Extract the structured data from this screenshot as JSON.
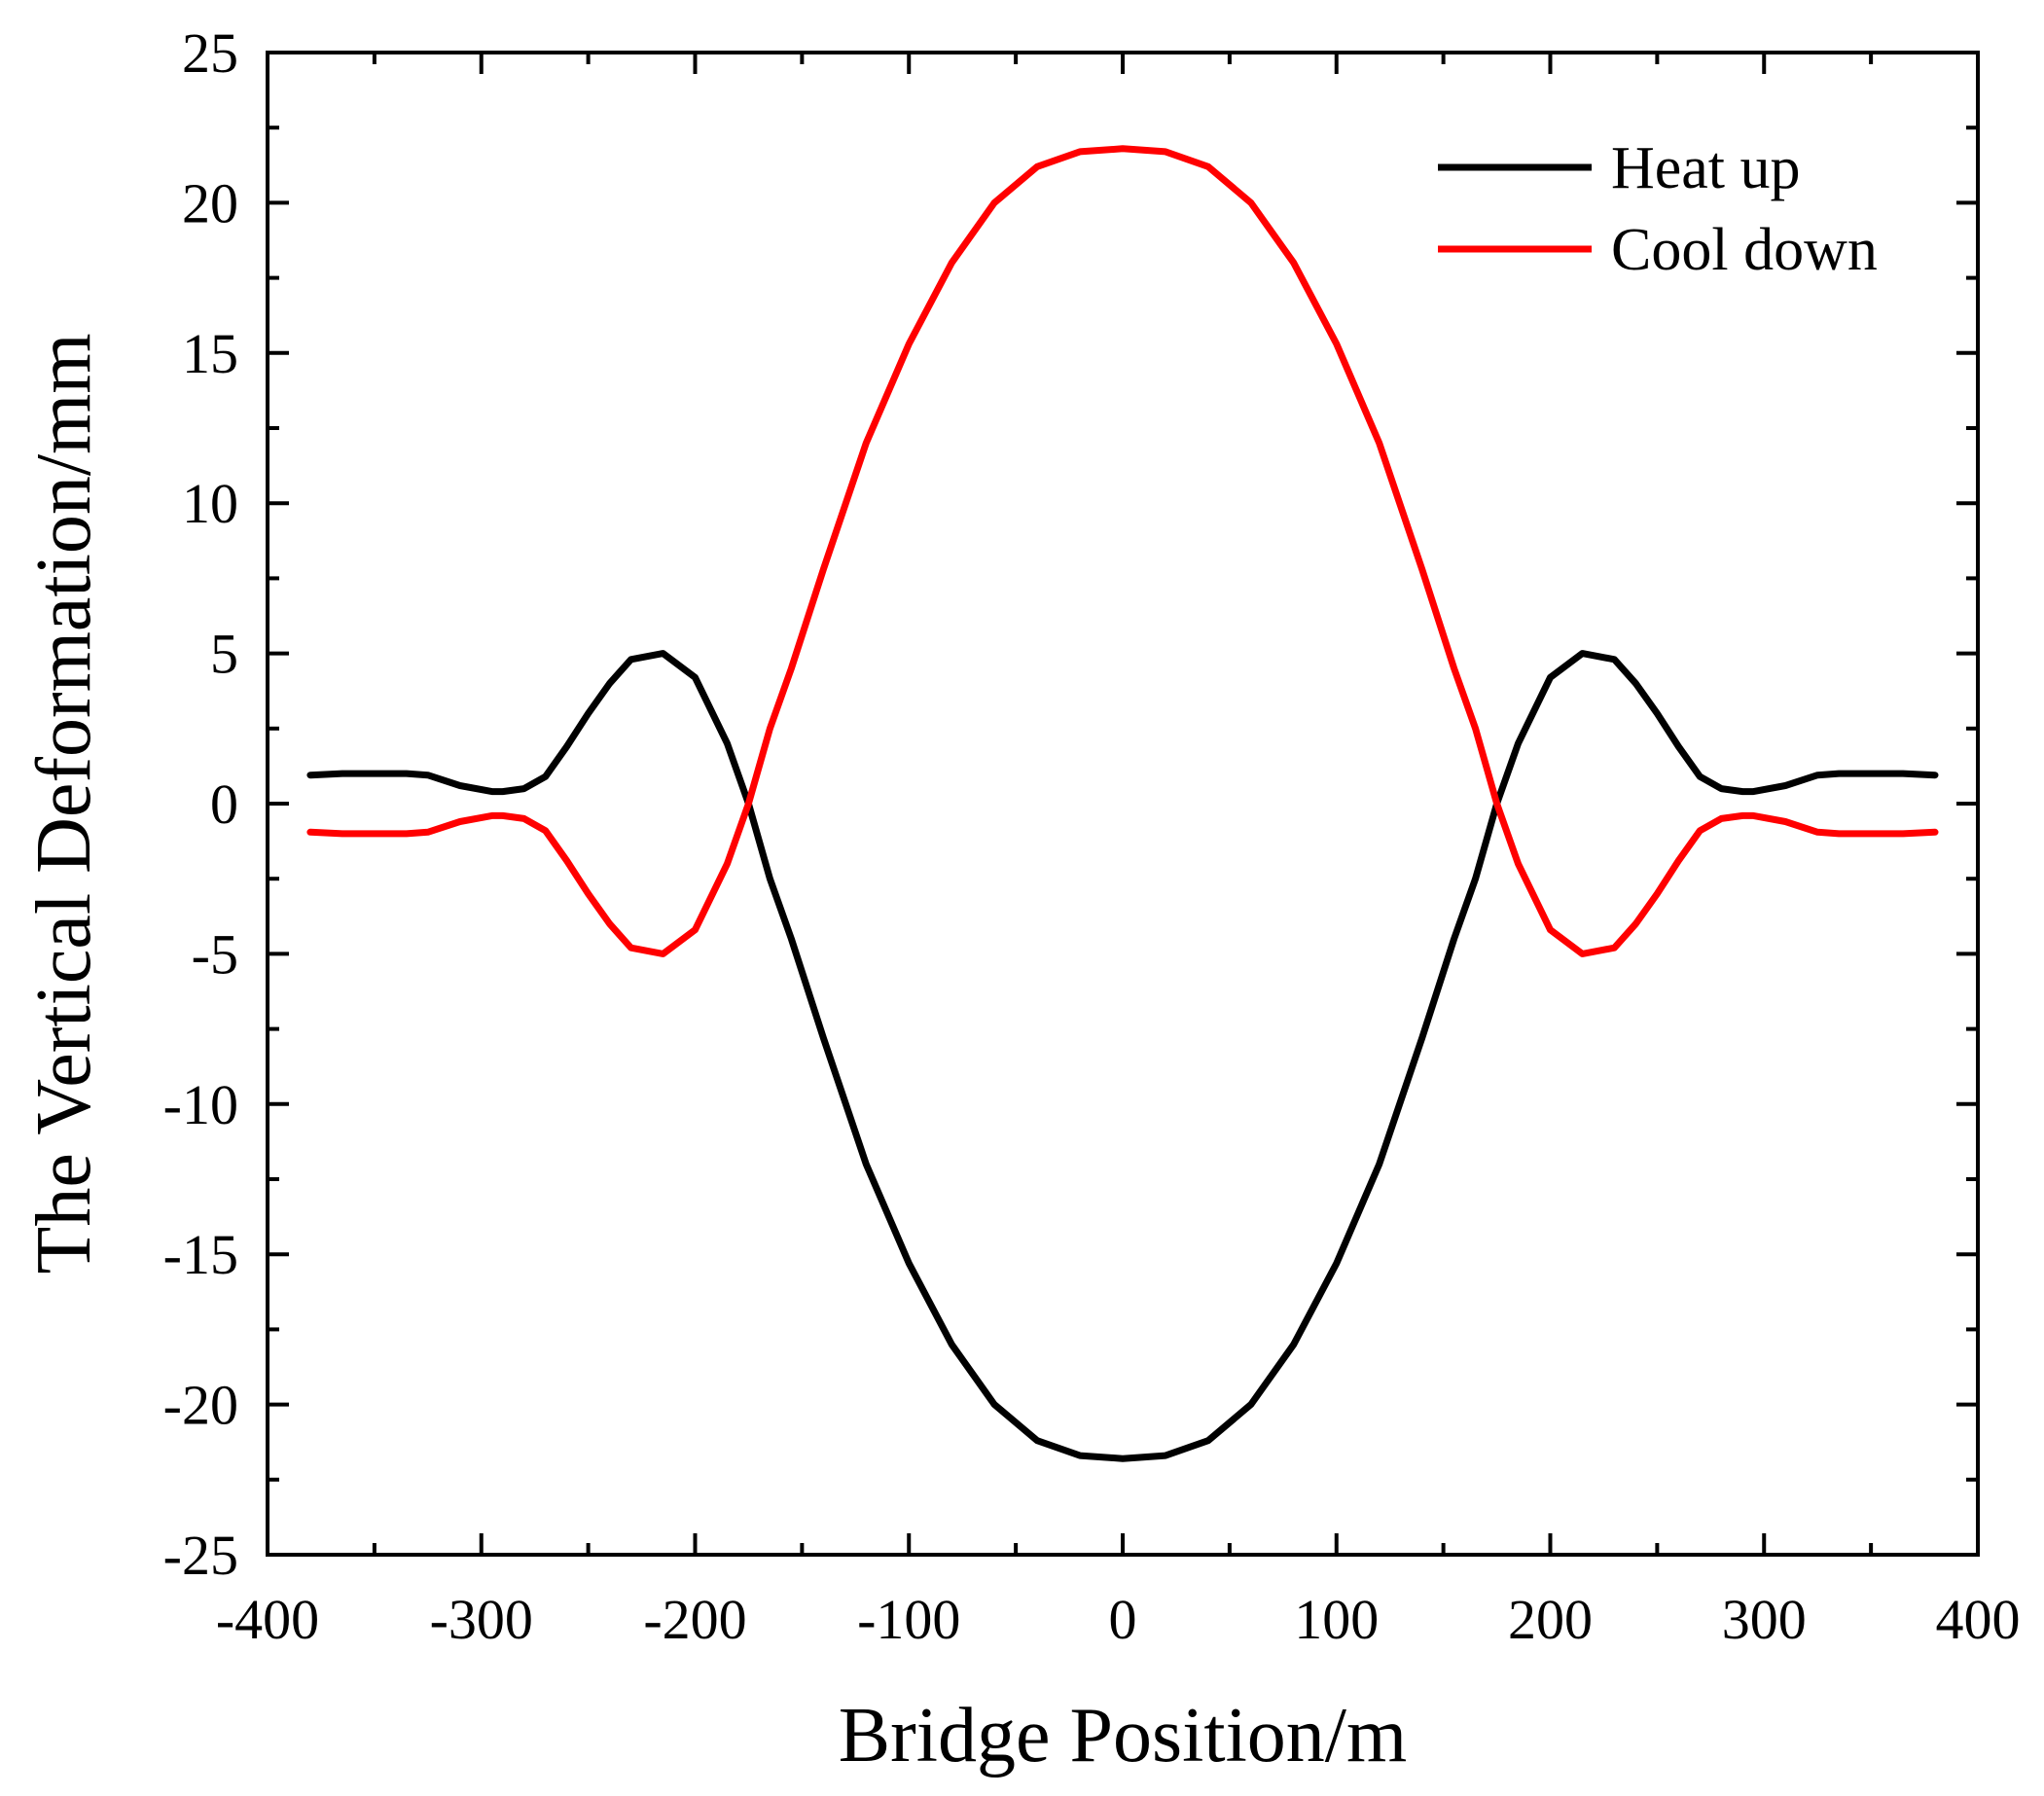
{
  "chart_data": {
    "type": "line",
    "title": "",
    "xlabel": "Bridge Position/m",
    "ylabel": "The Vertical Deformation/mm",
    "xlim": [
      -400,
      400
    ],
    "ylim": [
      -25,
      25
    ],
    "xticks": [
      -400,
      -300,
      -200,
      -100,
      0,
      100,
      200,
      300,
      400
    ],
    "yticks": [
      -25,
      -20,
      -15,
      -10,
      -5,
      0,
      5,
      10,
      15,
      20,
      25
    ],
    "grid": false,
    "legend_position": "top-right",
    "series": [
      {
        "name": "Heat up",
        "color": "#000000",
        "x": [
          -380,
          -365,
          -350,
          -335,
          -325,
          -310,
          -295,
          -290,
          -280,
          -270,
          -260,
          -250,
          -240,
          -230,
          -215,
          -200,
          -185,
          -175,
          -165,
          -155,
          -140,
          -120,
          -100,
          -80,
          -60,
          -40,
          -20,
          0,
          20,
          40,
          60,
          80,
          100,
          120,
          140,
          155,
          165,
          175,
          185,
          200,
          215,
          230,
          240,
          250,
          260,
          270,
          280,
          290,
          295,
          310,
          325,
          335,
          350,
          365,
          380
        ],
        "y": [
          0.95,
          1.0,
          1.0,
          1.0,
          0.95,
          0.6,
          0.4,
          0.4,
          0.5,
          0.9,
          1.9,
          3.0,
          4.0,
          4.8,
          5.0,
          4.2,
          2.0,
          0.0,
          -2.5,
          -4.5,
          -7.8,
          -12.0,
          -15.3,
          -18.0,
          -20.0,
          -21.2,
          -21.7,
          -21.8,
          -21.7,
          -21.2,
          -20.0,
          -18.0,
          -15.3,
          -12.0,
          -7.8,
          -4.5,
          -2.5,
          0.0,
          2.0,
          4.2,
          5.0,
          4.8,
          4.0,
          3.0,
          1.9,
          0.9,
          0.5,
          0.4,
          0.4,
          0.6,
          0.95,
          1.0,
          1.0,
          1.0,
          0.95
        ]
      },
      {
        "name": "Cool down",
        "color": "#ff0000",
        "x": [
          -380,
          -365,
          -350,
          -335,
          -325,
          -310,
          -295,
          -290,
          -280,
          -270,
          -260,
          -250,
          -240,
          -230,
          -215,
          -200,
          -185,
          -175,
          -165,
          -155,
          -140,
          -120,
          -100,
          -80,
          -60,
          -40,
          -20,
          0,
          20,
          40,
          60,
          80,
          100,
          120,
          140,
          155,
          165,
          175,
          185,
          200,
          215,
          230,
          240,
          250,
          260,
          270,
          280,
          290,
          295,
          310,
          325,
          335,
          350,
          365,
          380
        ],
        "y": [
          -0.95,
          -1.0,
          -1.0,
          -1.0,
          -0.95,
          -0.6,
          -0.4,
          -0.4,
          -0.5,
          -0.9,
          -1.9,
          -3.0,
          -4.0,
          -4.8,
          -5.0,
          -4.2,
          -2.0,
          0.0,
          2.5,
          4.5,
          7.8,
          12.0,
          15.3,
          18.0,
          20.0,
          21.2,
          21.7,
          21.8,
          21.7,
          21.2,
          20.0,
          18.0,
          15.3,
          12.0,
          7.8,
          4.5,
          2.5,
          0.0,
          -2.0,
          -4.2,
          -5.0,
          -4.8,
          -4.0,
          -3.0,
          -1.9,
          -0.9,
          -0.5,
          -0.4,
          -0.4,
          -0.6,
          -0.95,
          -1.0,
          -1.0,
          -1.0,
          -0.95
        ]
      }
    ]
  }
}
